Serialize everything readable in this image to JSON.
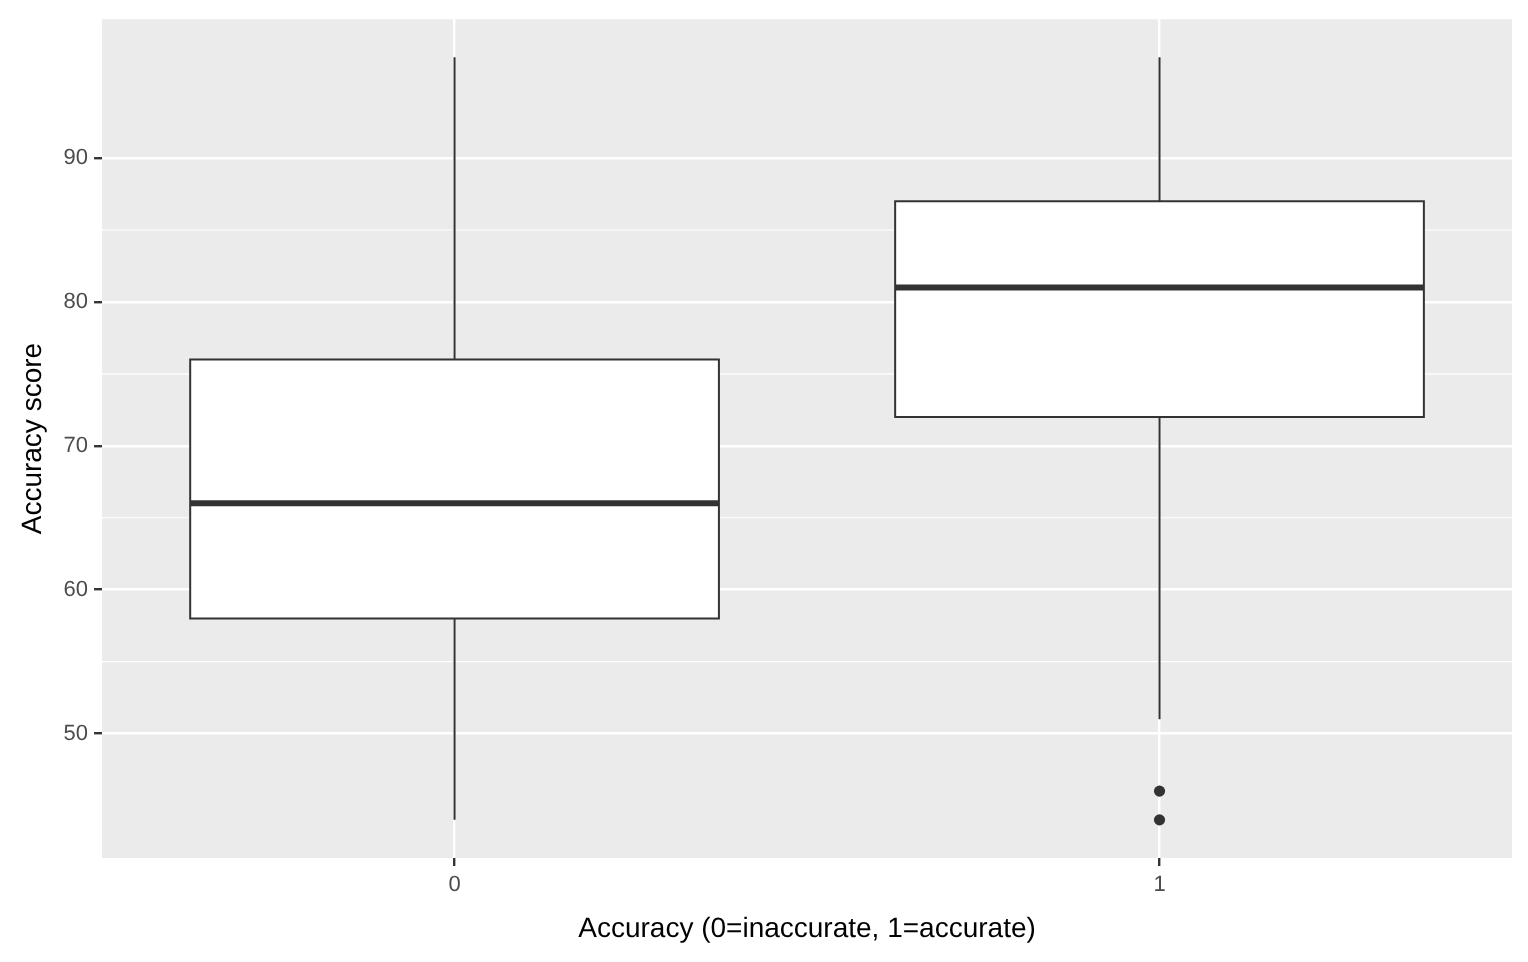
{
  "chart_data": {
    "type": "box",
    "xlabel": "Accuracy (0=inaccurate, 1=accurate)",
    "ylabel": "Accuracy score",
    "categories": [
      "0",
      "1"
    ],
    "boxes": [
      {
        "low": 44,
        "q1": 58,
        "median": 66,
        "q3": 76,
        "high": 97
      },
      {
        "low": 51,
        "q1": 72,
        "median": 81,
        "q3": 87,
        "high": 97,
        "outliers": [
          46,
          44
        ]
      }
    ],
    "ylim": [
      41.35,
      99.65
    ],
    "yticks": [
      50,
      60,
      70,
      80,
      90
    ],
    "grid": true
  }
}
